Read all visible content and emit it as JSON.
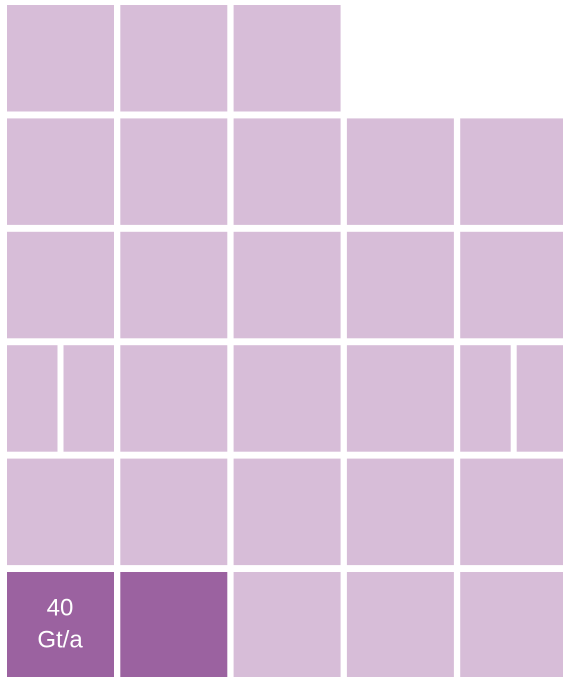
{
  "highlight": {
    "value": 40,
    "unit": "Gt/a"
  }
}
